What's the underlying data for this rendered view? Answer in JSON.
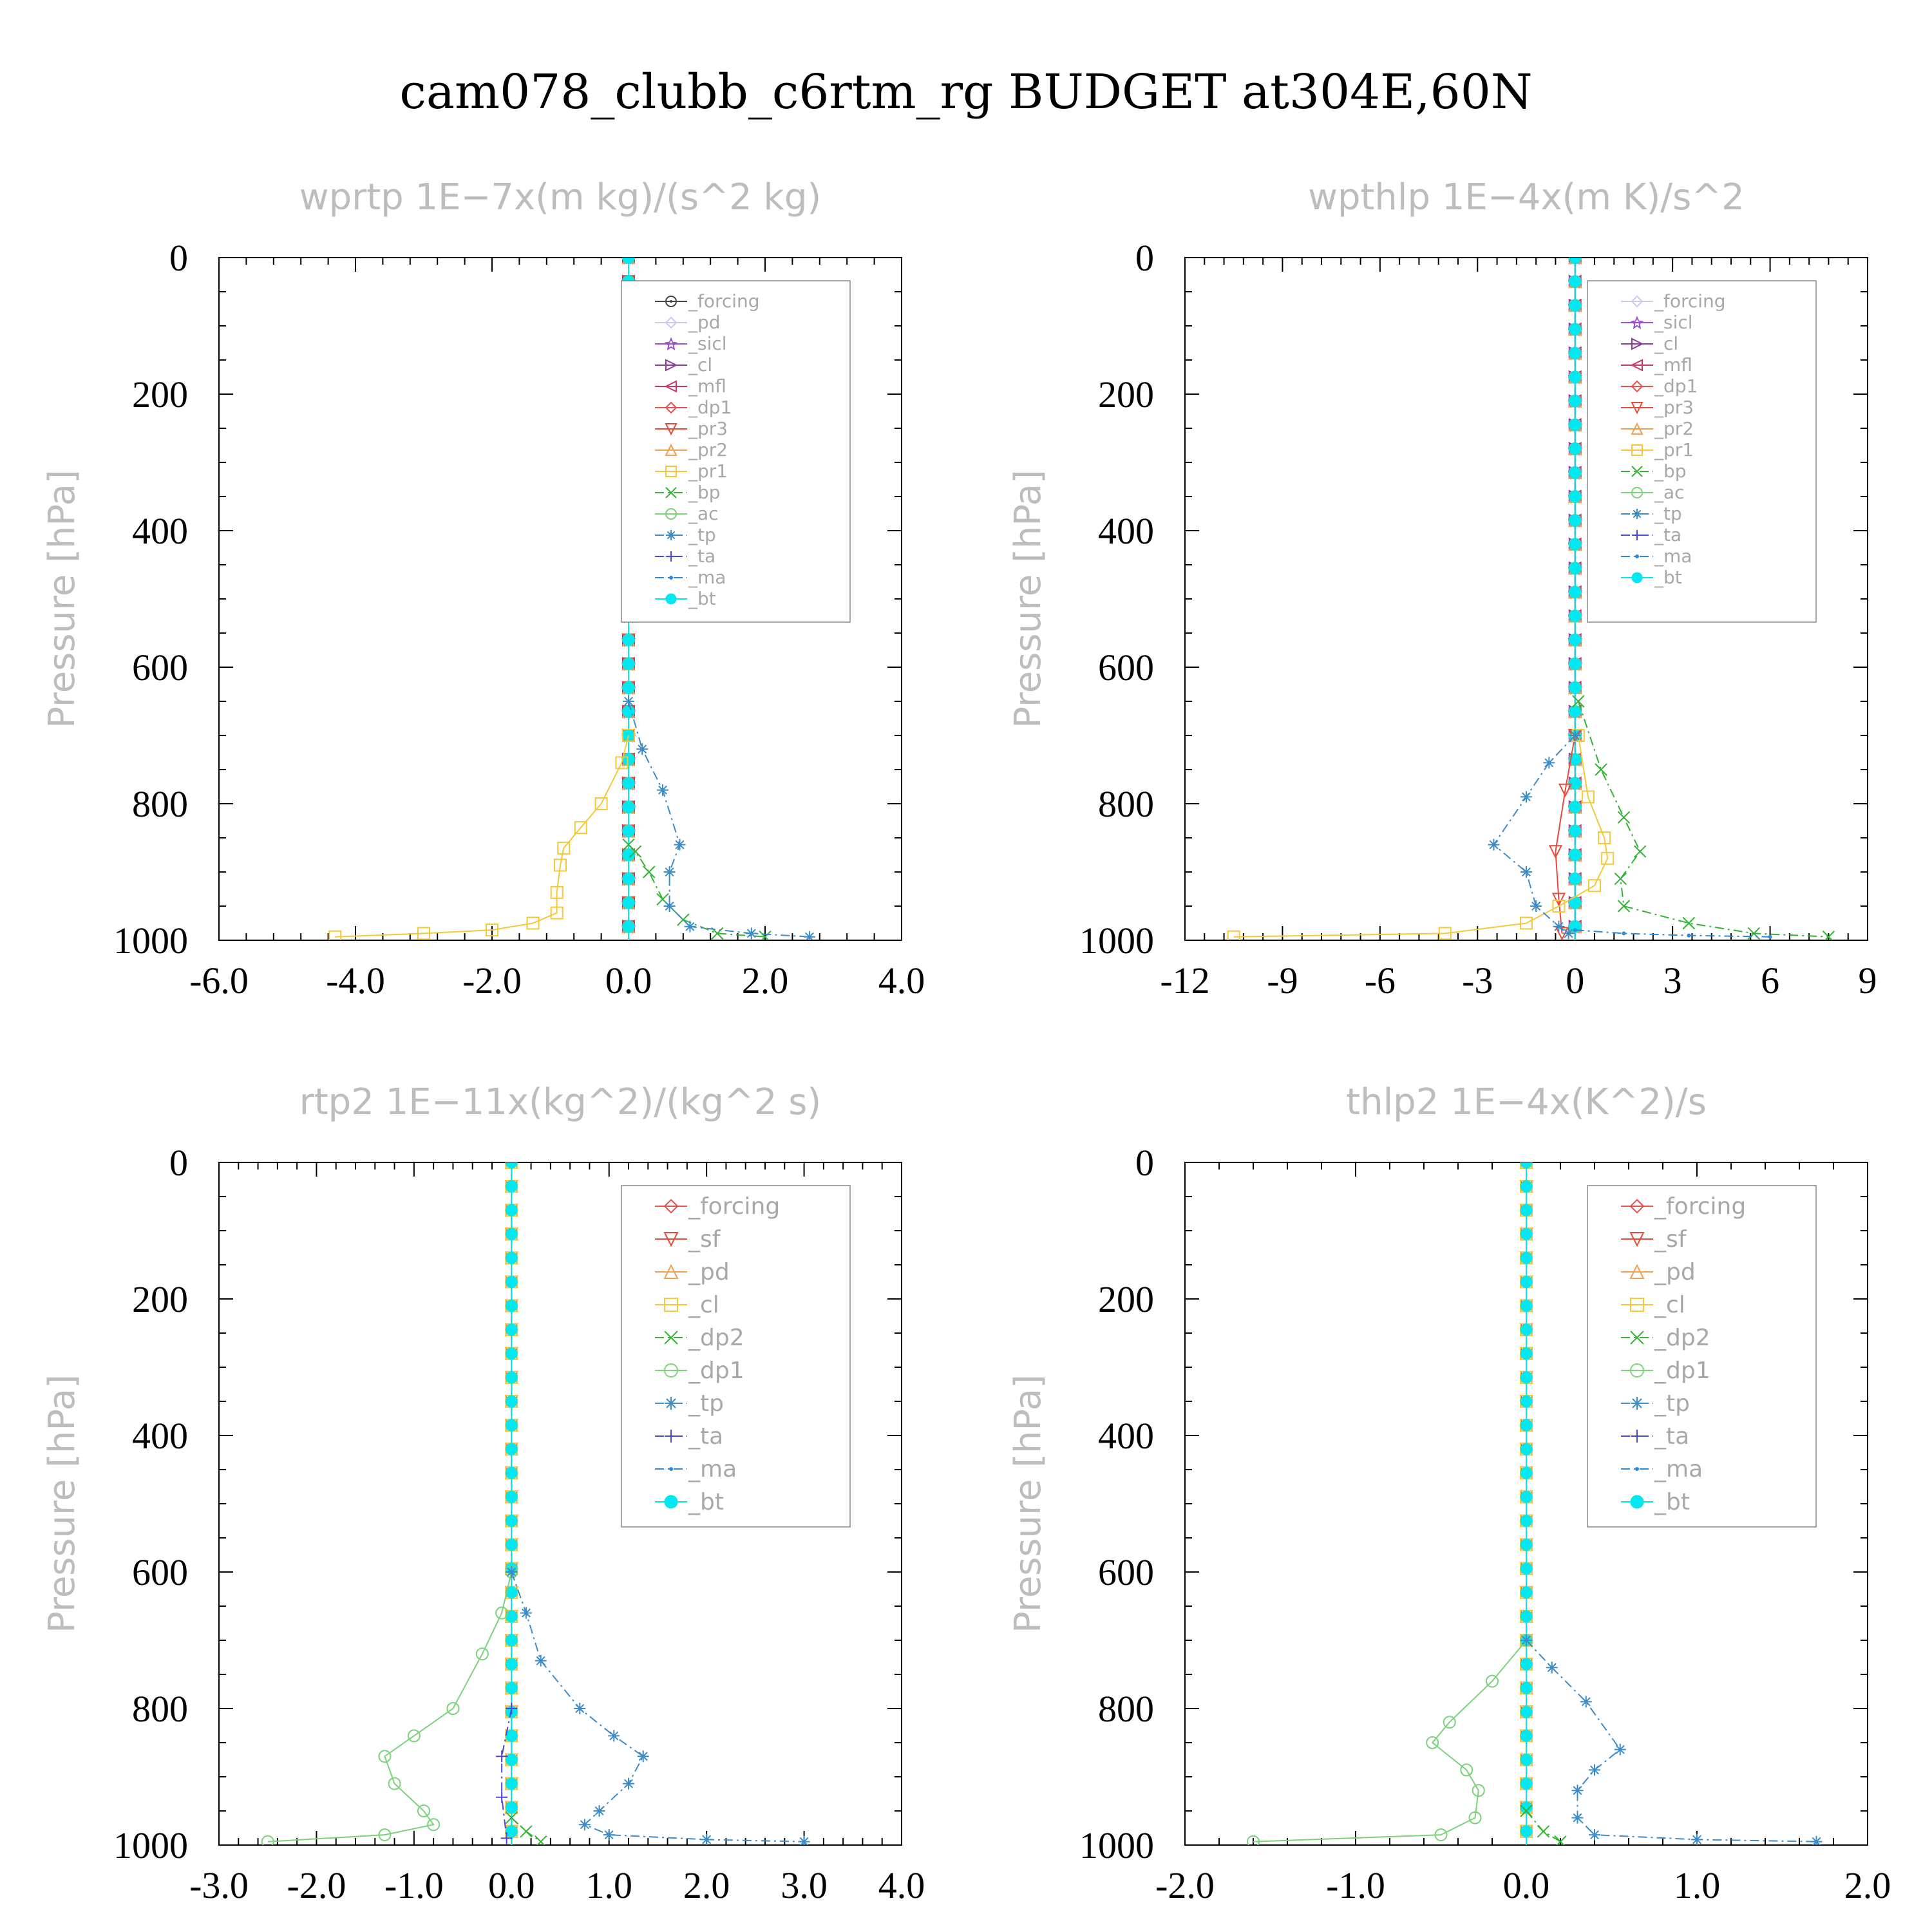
{
  "figure_title": "cam078_clubb_c6rtm_rg  BUDGET at304E,60N",
  "chart_data": [
    {
      "type": "line",
      "title": "wprtp   1E−7x(m kg)/(s^2 kg)",
      "ylabel": "Pressure [hPa]",
      "xlim": [
        -6,
        4
      ],
      "ylim": [
        0,
        1000
      ],
      "y_inverted": true,
      "xticks": [
        -6,
        -4,
        -2,
        0,
        2,
        4
      ],
      "xtick_labels": [
        "-6.0",
        "-4.0",
        "-2.0",
        "0.0",
        "2.0",
        "4.0"
      ],
      "yticks": [
        0,
        200,
        400,
        600,
        800,
        1000
      ],
      "ytick_labels": [
        "0",
        "200",
        "400",
        "600",
        "800",
        "1000"
      ],
      "legend_position": "top-right",
      "series": [
        {
          "name": "_forcing",
          "color": "#444444",
          "marker": "circle-dot"
        },
        {
          "name": "_pd",
          "color": "#c8c8ef",
          "marker": "diamond"
        },
        {
          "name": "_sicl",
          "color": "#9a4fc8",
          "marker": "star"
        },
        {
          "name": "_cl",
          "color": "#8a3c9a",
          "marker": "tri-right"
        },
        {
          "name": "_mfl",
          "color": "#c8386a",
          "marker": "tri-left"
        },
        {
          "name": "_dp1",
          "color": "#e85050",
          "marker": "diamond"
        },
        {
          "name": "_pr3",
          "color": "#e84a3a",
          "marker": "tri-down"
        },
        {
          "name": "_pr2",
          "color": "#f0a050",
          "marker": "tri-up"
        },
        {
          "name": "_pr1",
          "color": "#f5c838",
          "marker": "square",
          "points": [
            [
              0.0,
              700
            ],
            [
              -0.1,
              740
            ],
            [
              -0.4,
              800
            ],
            [
              -0.7,
              835
            ],
            [
              -0.95,
              865
            ],
            [
              -1.0,
              890
            ],
            [
              -1.05,
              930
            ],
            [
              -1.05,
              960
            ],
            [
              -1.4,
              975
            ],
            [
              -2.0,
              985
            ],
            [
              -3.0,
              990
            ],
            [
              -4.3,
              995
            ]
          ]
        },
        {
          "name": "_bp",
          "color": "#32b432",
          "marker": "x",
          "points": [
            [
              0.0,
              860
            ],
            [
              0.1,
              870
            ],
            [
              0.3,
              900
            ],
            [
              0.5,
              940
            ],
            [
              0.8,
              970
            ],
            [
              1.3,
              990
            ],
            [
              2.0,
              995
            ]
          ]
        },
        {
          "name": "_ac",
          "color": "#7ad27a",
          "marker": "circle"
        },
        {
          "name": "_tp",
          "color": "#3c8cc8",
          "marker": "asterisk",
          "points": [
            [
              0.0,
              650
            ],
            [
              0.2,
              720
            ],
            [
              0.5,
              780
            ],
            [
              0.75,
              860
            ],
            [
              0.6,
              900
            ],
            [
              0.6,
              950
            ],
            [
              0.9,
              980
            ],
            [
              1.8,
              990
            ],
            [
              2.65,
              995
            ]
          ]
        },
        {
          "name": "_ta",
          "color": "#4a4ad8",
          "marker": "plus"
        },
        {
          "name": "_ma",
          "color": "#2a8ad8",
          "marker": "dot"
        },
        {
          "name": "_bt",
          "color": "#00e8f0",
          "marker": "filled-circle"
        }
      ]
    },
    {
      "type": "line",
      "title": "wpthlp   1E−4x(m K)/s^2",
      "ylabel": "Pressure [hPa]",
      "xlim": [
        -12,
        9
      ],
      "ylim": [
        0,
        1000
      ],
      "y_inverted": true,
      "xticks": [
        -12,
        -9,
        -6,
        -3,
        0,
        3,
        6,
        9
      ],
      "xtick_labels": [
        "-12",
        "-9",
        "-6",
        "-3",
        "0",
        "3",
        "6",
        "9"
      ],
      "yticks": [
        0,
        200,
        400,
        600,
        800,
        1000
      ],
      "ytick_labels": [
        "0",
        "200",
        "400",
        "600",
        "800",
        "1000"
      ],
      "legend_position": "top-right",
      "series": [
        {
          "name": "_forcing",
          "color": "#d0c8ef",
          "marker": "diamond"
        },
        {
          "name": "_sicl",
          "color": "#9a4fc8",
          "marker": "star"
        },
        {
          "name": "_cl",
          "color": "#8a3c9a",
          "marker": "tri-right"
        },
        {
          "name": "_mfl",
          "color": "#c8386a",
          "marker": "tri-left"
        },
        {
          "name": "_dp1",
          "color": "#e85050",
          "marker": "diamond"
        },
        {
          "name": "_pr3",
          "color": "#e84a3a",
          "marker": "tri-down",
          "points": [
            [
              0.0,
              700
            ],
            [
              -0.3,
              780
            ],
            [
              -0.6,
              870
            ],
            [
              -0.5,
              940
            ],
            [
              -0.4,
              990
            ]
          ]
        },
        {
          "name": "_pr2",
          "color": "#f0a050",
          "marker": "tri-up"
        },
        {
          "name": "_pr1",
          "color": "#f5c838",
          "marker": "square",
          "points": [
            [
              0.1,
              700
            ],
            [
              0.4,
              790
            ],
            [
              0.9,
              850
            ],
            [
              1.0,
              880
            ],
            [
              0.6,
              920
            ],
            [
              -0.5,
              950
            ],
            [
              -1.5,
              975
            ],
            [
              -4.0,
              990
            ],
            [
              -10.5,
              995
            ]
          ]
        },
        {
          "name": "_bp",
          "color": "#32b432",
          "marker": "x",
          "points": [
            [
              0.1,
              650
            ],
            [
              0.8,
              750
            ],
            [
              1.5,
              820
            ],
            [
              2.0,
              870
            ],
            [
              1.4,
              910
            ],
            [
              1.5,
              950
            ],
            [
              3.5,
              975
            ],
            [
              5.5,
              990
            ],
            [
              7.8,
              995
            ]
          ]
        },
        {
          "name": "_ac",
          "color": "#7ad27a",
          "marker": "circle"
        },
        {
          "name": "_tp",
          "color": "#3c8cc8",
          "marker": "asterisk",
          "points": [
            [
              0.0,
              700
            ],
            [
              -0.8,
              740
            ],
            [
              -1.5,
              790
            ],
            [
              -2.5,
              860
            ],
            [
              -1.5,
              900
            ],
            [
              -1.2,
              950
            ],
            [
              -0.5,
              980
            ],
            [
              -0.2,
              990
            ]
          ]
        },
        {
          "name": "_ta",
          "color": "#4a4ad8",
          "marker": "plus"
        },
        {
          "name": "_ma",
          "color": "#2a8ad8",
          "marker": "dot",
          "points": [
            [
              0.0,
              985
            ],
            [
              1.5,
              990
            ],
            [
              3.5,
              993
            ],
            [
              6.0,
              995
            ]
          ]
        },
        {
          "name": "_bt",
          "color": "#00e8f0",
          "marker": "filled-circle"
        }
      ]
    },
    {
      "type": "line",
      "title": "rtp2   1E−11x(kg^2)/(kg^2 s)",
      "ylabel": "Pressure [hPa]",
      "xlim": [
        -3,
        4
      ],
      "ylim": [
        0,
        1000
      ],
      "y_inverted": true,
      "xticks": [
        -3,
        -2,
        -1,
        0,
        1,
        2,
        3,
        4
      ],
      "xtick_labels": [
        "-3.0",
        "-2.0",
        "-1.0",
        "0.0",
        "1.0",
        "2.0",
        "3.0",
        "4.0"
      ],
      "yticks": [
        0,
        200,
        400,
        600,
        800,
        1000
      ],
      "ytick_labels": [
        "0",
        "200",
        "400",
        "600",
        "800",
        "1000"
      ],
      "legend_position": "top-right",
      "series": [
        {
          "name": "_forcing",
          "color": "#e85050",
          "marker": "diamond"
        },
        {
          "name": "_sf",
          "color": "#e84a3a",
          "marker": "tri-down"
        },
        {
          "name": "_pd",
          "color": "#f0a050",
          "marker": "tri-up"
        },
        {
          "name": "_cl",
          "color": "#f5c838",
          "marker": "square"
        },
        {
          "name": "_dp2",
          "color": "#32b432",
          "marker": "x",
          "points": [
            [
              0.0,
              960
            ],
            [
              0.15,
              980
            ],
            [
              0.3,
              995
            ]
          ]
        },
        {
          "name": "_dp1",
          "color": "#7ad27a",
          "marker": "circle",
          "points": [
            [
              0.0,
              600
            ],
            [
              -0.1,
              660
            ],
            [
              -0.3,
              720
            ],
            [
              -0.6,
              800
            ],
            [
              -1.0,
              840
            ],
            [
              -1.3,
              870
            ],
            [
              -1.2,
              910
            ],
            [
              -0.9,
              950
            ],
            [
              -0.8,
              970
            ],
            [
              -1.3,
              985
            ],
            [
              -2.5,
              995
            ]
          ]
        },
        {
          "name": "_tp",
          "color": "#3c8cc8",
          "marker": "asterisk",
          "points": [
            [
              0.0,
              600
            ],
            [
              0.15,
              660
            ],
            [
              0.3,
              730
            ],
            [
              0.7,
              800
            ],
            [
              1.05,
              840
            ],
            [
              1.35,
              870
            ],
            [
              1.2,
              910
            ],
            [
              0.9,
              950
            ],
            [
              0.75,
              970
            ],
            [
              1.0,
              985
            ],
            [
              2.0,
              992
            ],
            [
              3.0,
              995
            ]
          ]
        },
        {
          "name": "_ta",
          "color": "#4a4ad8",
          "marker": "plus",
          "points": [
            [
              0.0,
              800
            ],
            [
              -0.1,
              870
            ],
            [
              -0.1,
              930
            ],
            [
              -0.05,
              990
            ]
          ]
        },
        {
          "name": "_ma",
          "color": "#2a8ad8",
          "marker": "dot"
        },
        {
          "name": "_bt",
          "color": "#00e8f0",
          "marker": "filled-circle"
        }
      ]
    },
    {
      "type": "line",
      "title": "thlp2   1E−4x(K^2)/s",
      "ylabel": "Pressure [hPa]",
      "xlim": [
        -2,
        2
      ],
      "ylim": [
        0,
        1000
      ],
      "y_inverted": true,
      "xticks": [
        -2,
        -1,
        0,
        1,
        2
      ],
      "xtick_labels": [
        "-2.0",
        "-1.0",
        "0.0",
        "1.0",
        "2.0"
      ],
      "yticks": [
        0,
        200,
        400,
        600,
        800,
        1000
      ],
      "ytick_labels": [
        "0",
        "200",
        "400",
        "600",
        "800",
        "1000"
      ],
      "legend_position": "top-right",
      "series": [
        {
          "name": "_forcing",
          "color": "#e85050",
          "marker": "diamond"
        },
        {
          "name": "_sf",
          "color": "#e84a3a",
          "marker": "tri-down"
        },
        {
          "name": "_pd",
          "color": "#f0a050",
          "marker": "tri-up"
        },
        {
          "name": "_cl",
          "color": "#f5c838",
          "marker": "square"
        },
        {
          "name": "_dp2",
          "color": "#32b432",
          "marker": "x",
          "points": [
            [
              0.0,
              950
            ],
            [
              0.1,
              980
            ],
            [
              0.2,
              995
            ]
          ]
        },
        {
          "name": "_dp1",
          "color": "#7ad27a",
          "marker": "circle",
          "points": [
            [
              0.0,
              700
            ],
            [
              -0.2,
              760
            ],
            [
              -0.45,
              820
            ],
            [
              -0.55,
              850
            ],
            [
              -0.35,
              890
            ],
            [
              -0.28,
              920
            ],
            [
              -0.3,
              960
            ],
            [
              -0.5,
              985
            ],
            [
              -1.6,
              995
            ]
          ]
        },
        {
          "name": "_tp",
          "color": "#3c8cc8",
          "marker": "asterisk",
          "points": [
            [
              0.0,
              700
            ],
            [
              0.15,
              740
            ],
            [
              0.35,
              790
            ],
            [
              0.55,
              860
            ],
            [
              0.4,
              890
            ],
            [
              0.3,
              920
            ],
            [
              0.3,
              960
            ],
            [
              0.4,
              985
            ],
            [
              1.0,
              992
            ],
            [
              1.7,
              995
            ]
          ]
        },
        {
          "name": "_ta",
          "color": "#4a4ad8",
          "marker": "plus"
        },
        {
          "name": "_ma",
          "color": "#2a8ad8",
          "marker": "dot"
        },
        {
          "name": "_bt",
          "color": "#00e8f0",
          "marker": "filled-circle"
        }
      ]
    }
  ]
}
